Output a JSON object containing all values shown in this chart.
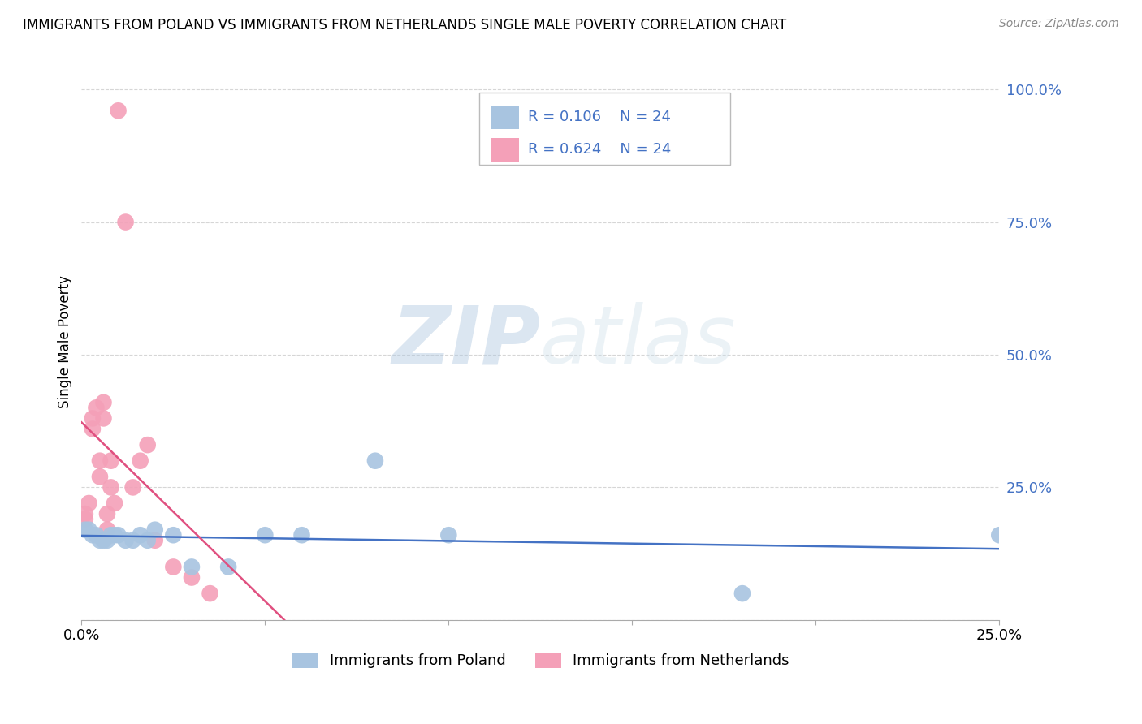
{
  "title": "IMMIGRANTS FROM POLAND VS IMMIGRANTS FROM NETHERLANDS SINGLE MALE POVERTY CORRELATION CHART",
  "source": "Source: ZipAtlas.com",
  "ylabel": "Single Male Poverty",
  "xlim": [
    0.0,
    0.25
  ],
  "ylim": [
    0.0,
    1.05
  ],
  "r_poland": 0.106,
  "n_poland": 24,
  "r_netherlands": 0.624,
  "n_netherlands": 24,
  "legend_label_poland": "Immigrants from Poland",
  "legend_label_netherlands": "Immigrants from Netherlands",
  "color_poland": "#a8c4e0",
  "color_netherlands": "#f4a0b8",
  "color_poland_line": "#4472c4",
  "color_netherlands_line": "#e05080",
  "color_text_blue": "#4472c4",
  "watermark_zip": "ZIP",
  "watermark_atlas": "atlas",
  "poland_x": [
    0.001,
    0.002,
    0.003,
    0.004,
    0.005,
    0.006,
    0.007,
    0.008,
    0.009,
    0.01,
    0.012,
    0.014,
    0.016,
    0.018,
    0.02,
    0.025,
    0.03,
    0.04,
    0.05,
    0.06,
    0.08,
    0.1,
    0.18,
    0.25
  ],
  "poland_y": [
    0.17,
    0.17,
    0.16,
    0.16,
    0.15,
    0.15,
    0.15,
    0.16,
    0.16,
    0.16,
    0.15,
    0.15,
    0.16,
    0.15,
    0.17,
    0.16,
    0.1,
    0.1,
    0.16,
    0.16,
    0.3,
    0.16,
    0.05,
    0.16
  ],
  "netherlands_x": [
    0.001,
    0.001,
    0.002,
    0.003,
    0.003,
    0.004,
    0.005,
    0.005,
    0.006,
    0.006,
    0.007,
    0.007,
    0.008,
    0.008,
    0.009,
    0.01,
    0.012,
    0.014,
    0.016,
    0.018,
    0.02,
    0.025,
    0.03,
    0.035
  ],
  "netherlands_y": [
    0.19,
    0.2,
    0.22,
    0.36,
    0.38,
    0.4,
    0.27,
    0.3,
    0.38,
    0.41,
    0.17,
    0.2,
    0.25,
    0.3,
    0.22,
    0.96,
    0.75,
    0.25,
    0.3,
    0.33,
    0.15,
    0.1,
    0.08,
    0.05
  ],
  "yticks": [
    0.0,
    0.25,
    0.5,
    0.75,
    1.0
  ],
  "ytick_labels": [
    "",
    "25.0%",
    "50.0%",
    "75.0%",
    "100.0%"
  ],
  "xtick_positions": [
    0.0,
    0.05,
    0.1,
    0.15,
    0.2,
    0.25
  ],
  "xtick_labels_show": [
    "0.0%",
    "",
    "",
    "",
    "",
    "25.0%"
  ]
}
